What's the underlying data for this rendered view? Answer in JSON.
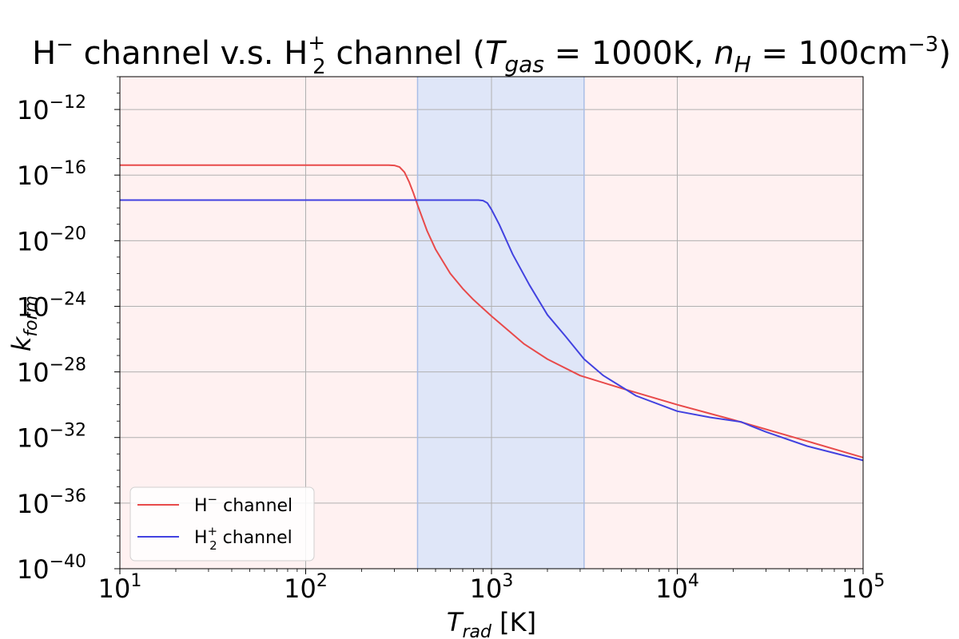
{
  "chart_data": {
    "type": "line",
    "title": {
      "prefix": "H",
      "minus_sup": "−",
      "middle": " channel v.s. H",
      "h2_sub": "2",
      "h2_sup": "+",
      "suffix_open": " channel (",
      "tgas_T": "T",
      "tgas_sub": "gas",
      "tgas_eq": " = 1000K, ",
      "nh_n": "n",
      "nh_sub": "H",
      "nh_eq": " = 100cm",
      "nh_sup": "−3",
      "close": ")"
    },
    "xlabel": {
      "main": "T",
      "sub": "rad",
      "unit": " [K]"
    },
    "ylabel": {
      "main": "k",
      "sub": "form"
    },
    "x_scale": "log",
    "y_scale": "log",
    "xlim": [
      10,
      100000
    ],
    "ylim": [
      1e-40,
      1e-10
    ],
    "x_ticks": [
      {
        "base": "10",
        "exp": "1",
        "value": 10
      },
      {
        "base": "10",
        "exp": "2",
        "value": 100
      },
      {
        "base": "10",
        "exp": "3",
        "value": 1000
      },
      {
        "base": "10",
        "exp": "4",
        "value": 10000
      },
      {
        "base": "10",
        "exp": "5",
        "value": 100000
      }
    ],
    "y_ticks": [
      {
        "base": "10",
        "exp": "−12",
        "value": 1e-12
      },
      {
        "base": "10",
        "exp": "−16",
        "value": 1e-16
      },
      {
        "base": "10",
        "exp": "−20",
        "value": 1e-20
      },
      {
        "base": "10",
        "exp": "−24",
        "value": 1e-24
      },
      {
        "base": "10",
        "exp": "−28",
        "value": 1e-28
      },
      {
        "base": "10",
        "exp": "−32",
        "value": 1e-32
      },
      {
        "base": "10",
        "exp": "−36",
        "value": 1e-36
      },
      {
        "base": "10",
        "exp": "−40",
        "value": 1e-40
      }
    ],
    "grid": true,
    "shaded_regions": [
      {
        "x_from": 10,
        "x_to": 400,
        "color": "#fff1f1"
      },
      {
        "x_from": 400,
        "x_to": 3150,
        "color": "#dfe6f8"
      },
      {
        "x_from": 3150,
        "x_to": 100000,
        "color": "#fff1f1"
      }
    ],
    "region_boundaries": [
      400,
      3150
    ],
    "legend": "lower-left",
    "series": [
      {
        "name_main": "H",
        "name_sup": "−",
        "name_sub": "",
        "name_tail": " channel",
        "color": "#e84a4a",
        "x": [
          10,
          100,
          280,
          300,
          320,
          340,
          360,
          380,
          400,
          450,
          500,
          600,
          700,
          800,
          1000,
          1500,
          2000,
          3000,
          5000,
          10000,
          20000,
          50000,
          100000
        ],
        "y": [
          4e-16,
          4e-16,
          4e-16,
          3.9e-16,
          3.1e-16,
          1.5e-16,
          4e-17,
          8e-18,
          1.5e-18,
          4e-20,
          3e-21,
          1e-22,
          1.2e-23,
          2.5e-24,
          2.5e-25,
          5e-27,
          6e-28,
          6e-29,
          1e-29,
          1e-30,
          1.2e-31,
          6e-33,
          6e-34
        ]
      },
      {
        "name_main": "H",
        "name_sup": "+",
        "name_sub": "2",
        "name_tail": " channel",
        "color": "#4242e0",
        "x": [
          10,
          100,
          500,
          850,
          900,
          950,
          1000,
          1100,
          1300,
          1600,
          2000,
          2500,
          3150,
          4000,
          6000,
          10000,
          15000,
          22000,
          25000,
          30000,
          50000,
          100000
        ],
        "y": [
          3e-18,
          3e-18,
          3e-18,
          3e-18,
          2.8e-18,
          2e-18,
          8e-19,
          1e-19,
          1.5e-21,
          2e-23,
          3e-25,
          1.5e-26,
          6e-28,
          6e-29,
          3.5e-30,
          4e-31,
          1.7e-31,
          9e-32,
          5e-32,
          2.2e-32,
          3e-33,
          4e-34
        ]
      }
    ]
  }
}
